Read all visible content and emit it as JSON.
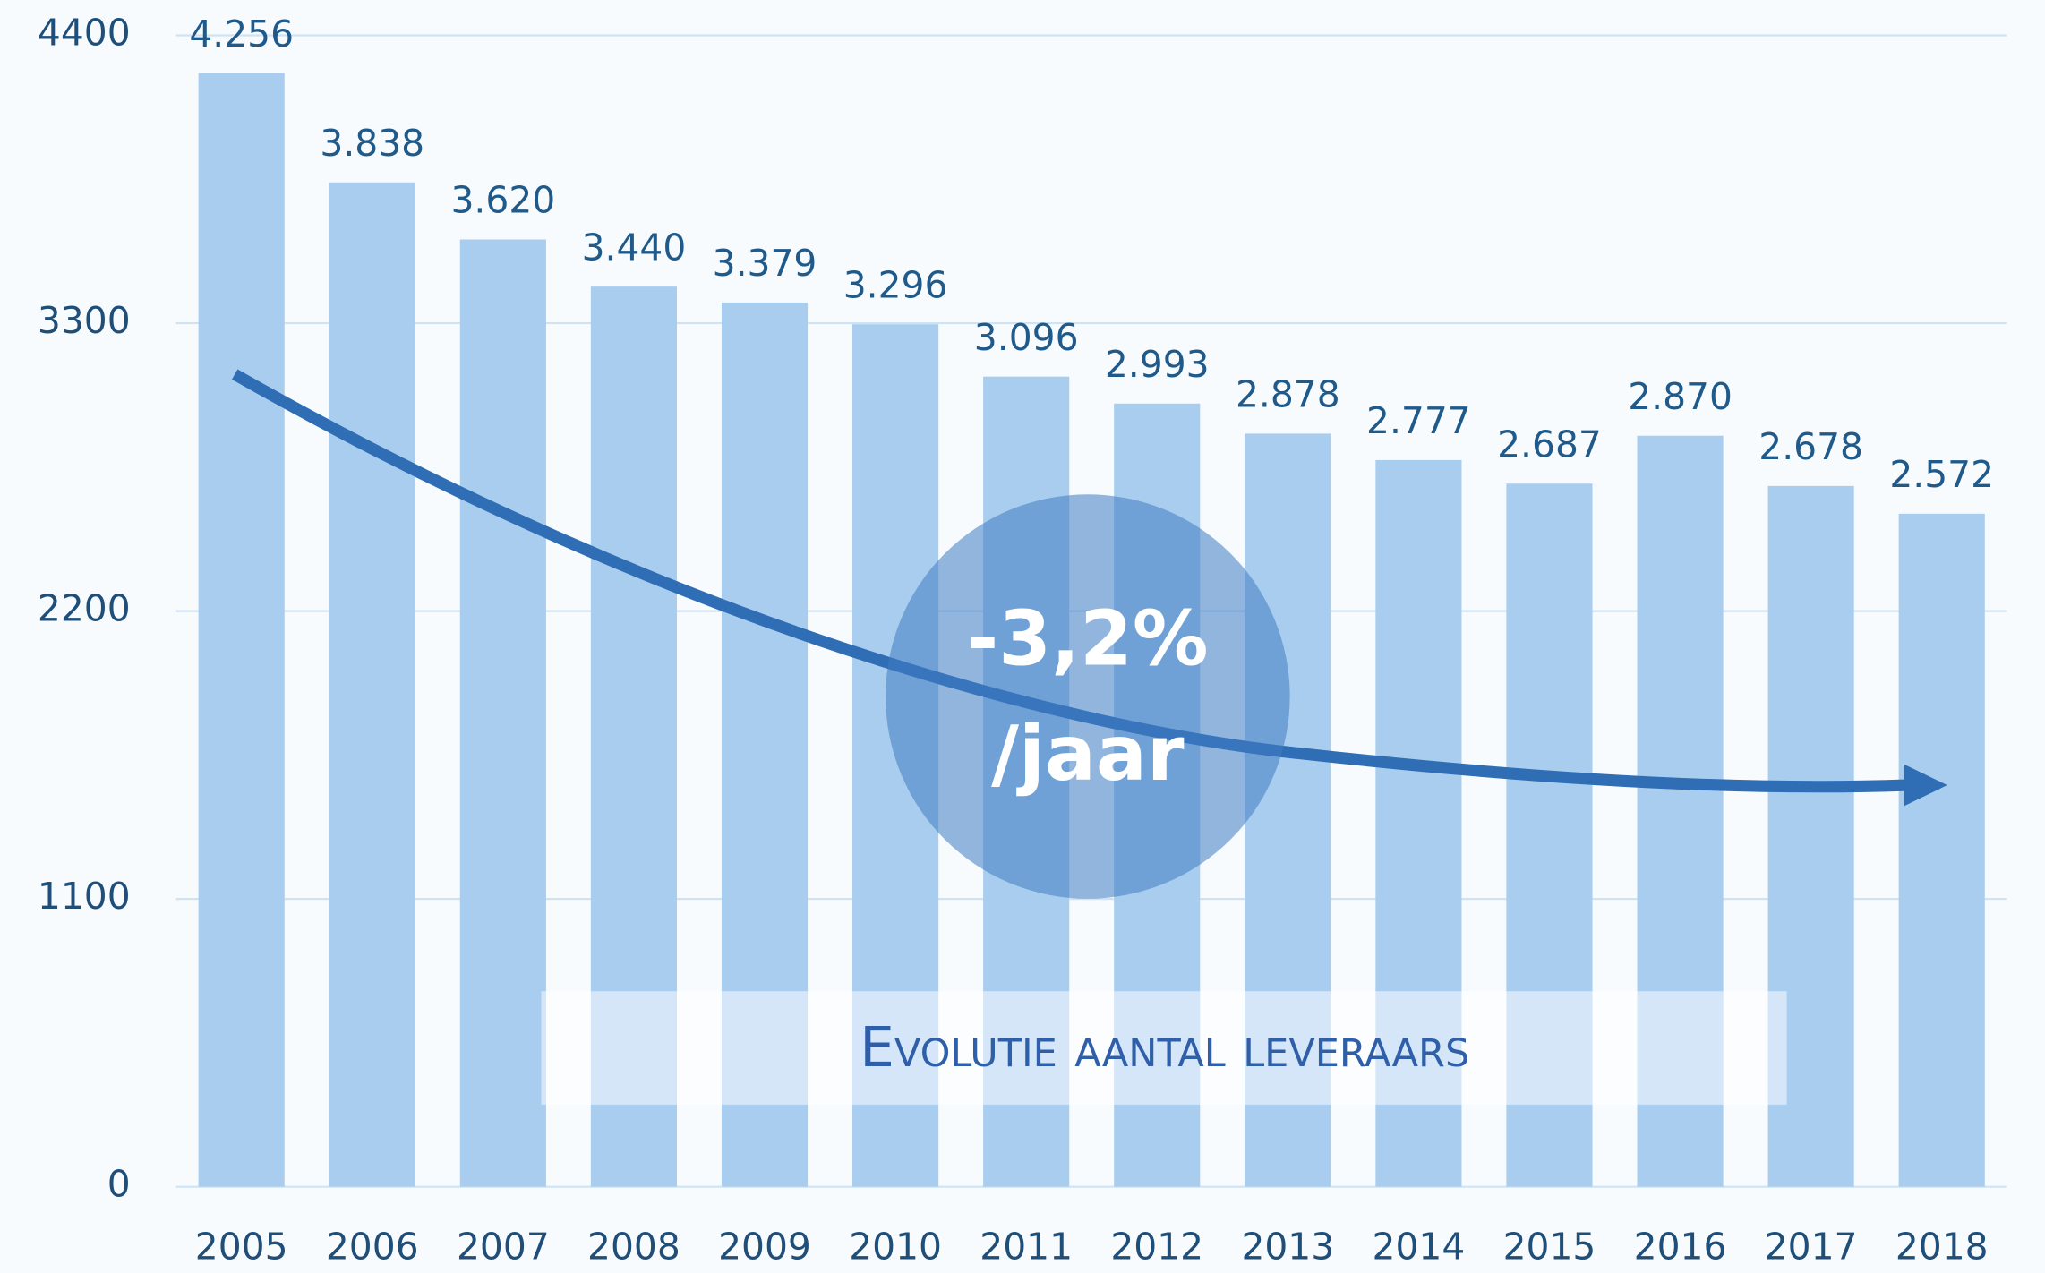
{
  "chart_data": {
    "type": "bar",
    "title": "Evolutie aantal leveraars",
    "categories": [
      "2005",
      "2006",
      "2007",
      "2008",
      "2009",
      "2010",
      "2011",
      "2012",
      "2013",
      "2014",
      "2015",
      "2016",
      "2017",
      "2018"
    ],
    "values": [
      4256,
      3838,
      3620,
      3440,
      3379,
      3296,
      3096,
      2993,
      2878,
      2777,
      2687,
      2870,
      2678,
      2572
    ],
    "value_labels": [
      "4.256",
      "3.838",
      "3.620",
      "3.440",
      "3.379",
      "3.296",
      "3.096",
      "2.993",
      "2.878",
      "2.777",
      "2.687",
      "2.870",
      "2.678",
      "2.572"
    ],
    "color": "#a8cdee",
    "ylim": [
      0,
      4400
    ],
    "yticks": [
      0,
      1100,
      2200,
      3300,
      4400
    ],
    "grid": true,
    "annotations": [
      "-3,2%",
      "/jaar"
    ]
  }
}
